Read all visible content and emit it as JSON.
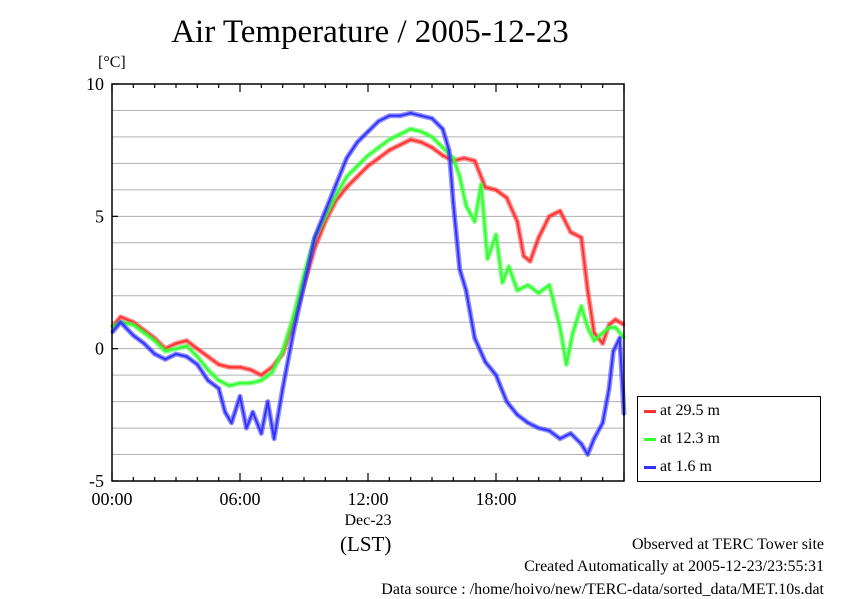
{
  "title": "Air Temperature / 2005-12-23",
  "unit_label": "[°C]",
  "time_zone_label": "(LST)",
  "footer": {
    "site": "Observed at TERC Tower site",
    "created": "Created Automatically at 2005-12-23/23:55:31",
    "source": "Data source : /home/hoivo/new/TERC-data/sorted_data/MET.10s.dat"
  },
  "chart_data": {
    "type": "line",
    "title": "Air Temperature / 2005-12-23",
    "ylabel": "[°C]",
    "xlabel": "(LST)",
    "xlim": [
      0,
      24
    ],
    "ylim": [
      -5,
      10
    ],
    "y_ticks": [
      -5,
      0,
      5,
      10
    ],
    "y_tick_labels": [
      "-5",
      "0",
      "5",
      "10"
    ],
    "x_ticks": [
      0,
      6,
      12,
      18
    ],
    "x_tick_labels": [
      "00:00",
      "06:00",
      "12:00",
      "18:00"
    ],
    "x_date_label": "Dec-23",
    "grid": "horizontal",
    "legend_position": "bottom-right, outside plot",
    "series": [
      {
        "name": "at 29.5 m",
        "color": "#ff3333",
        "x": [
          0,
          0.4,
          1,
          1.5,
          2,
          2.5,
          3,
          3.5,
          4,
          4.5,
          5,
          5.5,
          6,
          6.5,
          7,
          7.5,
          8,
          8.5,
          9,
          9.5,
          10,
          10.5,
          11,
          11.5,
          12,
          12.5,
          13,
          13.5,
          14,
          14.5,
          15,
          15.5,
          16,
          16.5,
          17,
          17.5,
          18,
          18.5,
          19,
          19.3,
          19.6,
          20,
          20.5,
          21,
          21.5,
          22,
          22.3,
          22.6,
          23,
          23.3,
          23.6,
          24
        ],
        "values": [
          0.8,
          1.2,
          1,
          0.7,
          0.4,
          0,
          0.2,
          0.3,
          0,
          -0.3,
          -0.6,
          -0.7,
          -0.7,
          -0.8,
          -1.0,
          -0.7,
          -0.2,
          1.0,
          2.4,
          3.8,
          4.8,
          5.6,
          6.1,
          6.5,
          6.9,
          7.2,
          7.5,
          7.7,
          7.9,
          7.8,
          7.6,
          7.3,
          7.1,
          7.2,
          7.1,
          6.1,
          6.0,
          5.7,
          4.8,
          3.5,
          3.3,
          4.2,
          5.0,
          5.2,
          4.4,
          4.2,
          2.2,
          0.6,
          0.2,
          0.9,
          1.1,
          0.9
        ]
      },
      {
        "name": "at 12.3 m",
        "color": "#33ff33",
        "x": [
          0,
          0.4,
          1,
          1.5,
          2,
          2.5,
          3,
          3.5,
          4,
          4.5,
          5,
          5.5,
          6,
          6.5,
          7,
          7.5,
          8,
          8.5,
          9,
          9.5,
          10,
          10.5,
          11,
          11.5,
          12,
          12.5,
          13,
          13.5,
          14,
          14.5,
          15,
          15.5,
          16,
          16.3,
          16.6,
          17,
          17.3,
          17.6,
          18,
          18.3,
          18.6,
          19,
          19.5,
          20,
          20.5,
          21,
          21.3,
          21.6,
          22,
          22.3,
          22.6,
          23,
          23.3,
          23.6,
          24
        ],
        "values": [
          0.8,
          1.0,
          0.9,
          0.6,
          0.3,
          -0.1,
          0.0,
          0.1,
          -0.3,
          -0.8,
          -1.2,
          -1.4,
          -1.3,
          -1.3,
          -1.2,
          -0.9,
          -0.1,
          1.2,
          2.8,
          4.2,
          5.0,
          5.8,
          6.5,
          6.9,
          7.3,
          7.6,
          7.9,
          8.1,
          8.3,
          8.2,
          8.0,
          7.6,
          7.2,
          6.5,
          5.4,
          4.8,
          6.2,
          3.4,
          4.3,
          2.5,
          3.1,
          2.2,
          2.4,
          2.1,
          2.4,
          0.8,
          -0.6,
          0.6,
          1.6,
          0.8,
          0.3,
          0.6,
          0.8,
          0.8,
          0.4
        ]
      },
      {
        "name": "at 1.6 m",
        "color": "#3333ff",
        "x": [
          0,
          0.4,
          1,
          1.5,
          2,
          2.5,
          3,
          3.5,
          4,
          4.5,
          5,
          5.3,
          5.6,
          6,
          6.3,
          6.6,
          7,
          7.3,
          7.6,
          8,
          8.5,
          9,
          9.5,
          10,
          10.5,
          11,
          11.5,
          12,
          12.5,
          13,
          13.5,
          14,
          14.5,
          15,
          15.5,
          15.8,
          16,
          16.3,
          16.6,
          17,
          17.5,
          18,
          18.5,
          19,
          19.5,
          20,
          20.5,
          21,
          21.5,
          22,
          22.3,
          22.6,
          23,
          23.3,
          23.5,
          23.8,
          24
        ],
        "values": [
          0.6,
          1.0,
          0.5,
          0.2,
          -0.2,
          -0.4,
          -0.2,
          -0.3,
          -0.6,
          -1.2,
          -1.5,
          -2.4,
          -2.8,
          -1.8,
          -3.0,
          -2.4,
          -3.2,
          -2.0,
          -3.4,
          -1.5,
          0.6,
          2.4,
          4.2,
          5.2,
          6.2,
          7.2,
          7.8,
          8.2,
          8.6,
          8.8,
          8.8,
          8.9,
          8.8,
          8.7,
          8.3,
          7.5,
          5.5,
          3.0,
          2.2,
          0.4,
          -0.5,
          -1.0,
          -2.0,
          -2.5,
          -2.8,
          -3.0,
          -3.1,
          -3.4,
          -3.2,
          -3.6,
          -4.0,
          -3.4,
          -2.8,
          -1.5,
          -0.1,
          0.4,
          -2.5
        ]
      }
    ]
  }
}
